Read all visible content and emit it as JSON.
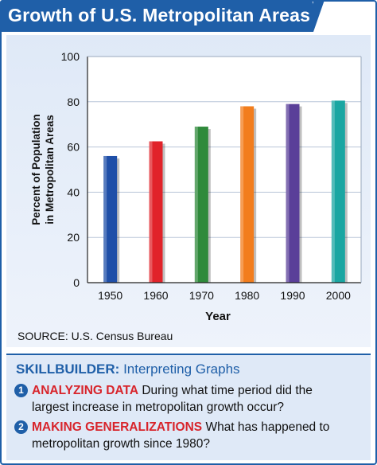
{
  "title": "Growth of U.S. Metropolitan Areas",
  "chart_data": {
    "type": "bar",
    "categories": [
      "1950",
      "1960",
      "1970",
      "1980",
      "1990",
      "2000"
    ],
    "values": [
      56,
      62.5,
      69,
      78,
      79,
      80.5
    ],
    "colors": [
      "#1f4fa8",
      "#e1232a",
      "#2f8a3b",
      "#f27d1d",
      "#5a3f99",
      "#1aa6a2"
    ],
    "xlabel": "Year",
    "ylabel": [
      "Percent of Population",
      "in Metropolitan Areas"
    ],
    "ylim": [
      0,
      100
    ],
    "yticks": [
      0,
      20,
      40,
      60,
      80,
      100
    ],
    "grid": true
  },
  "source": "SOURCE: U.S. Census Bureau",
  "skillbuilder": {
    "label": "SKILLBUILDER:",
    "title": "Interpreting Graphs",
    "questions": [
      {
        "number": "1",
        "heading": "ANALYZING DATA",
        "line1": "During what time period did the",
        "line2": "largest increase in metropolitan growth occur?"
      },
      {
        "number": "2",
        "heading": "MAKING GENERALIZATIONS",
        "line1": "What has happened to",
        "line2": "metropolitan growth since 1980?"
      }
    ]
  }
}
